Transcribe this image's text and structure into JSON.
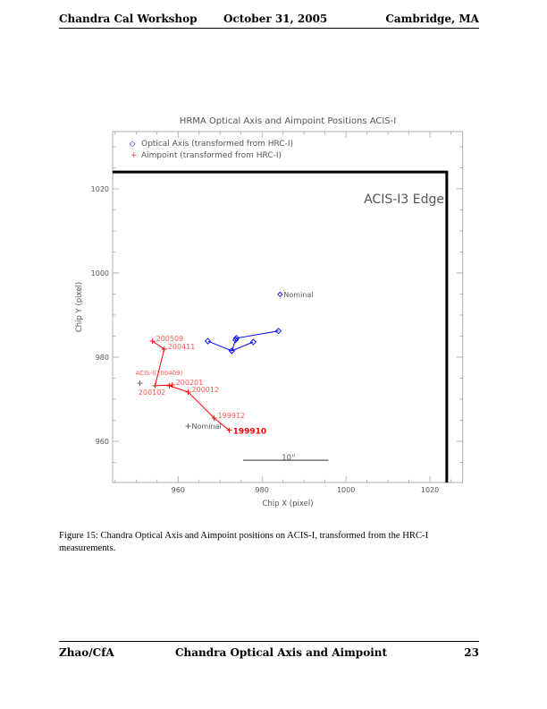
{
  "header": {
    "left": "Chandra Cal Workshop",
    "center": "October 31, 2005",
    "right": "Cambridge, MA"
  },
  "footer": {
    "left": "Zhao/CfA",
    "center": "Chandra Optical Axis and Aimpoint",
    "right": "23"
  },
  "caption": "Figure 15: Chandra Optical Axis and Aimpoint positions on ACIS-I, transformed from the HRC-I measurements.",
  "chart_data": {
    "type": "scatter",
    "title": "HRMA Optical Axis and Aimpoint Positions  ACIS-I",
    "xlabel": "Chip X (pixel)",
    "ylabel": "Chip Y (pixel)",
    "xlim": [
      944.4,
      1027.8
    ],
    "ylim": [
      950.2,
      1033.6
    ],
    "xticks": [
      960,
      980,
      1000,
      1020
    ],
    "yticks": [
      960,
      980,
      1000,
      1020
    ],
    "grid": false,
    "legend": {
      "placement": "top-left",
      "entries": [
        {
          "symbol": "◇",
          "label": "Optical Axis (transformed from HRC-I)",
          "color": "#0000ff"
        },
        {
          "symbol": "+",
          "label": "Aimpoint (transformed from HRC-I)",
          "color": "#ff0000"
        }
      ]
    },
    "edge": {
      "label": "ACIS-I3 Edge",
      "x": 1024.0,
      "y": 1024.0
    },
    "scale_bar": {
      "label": "10''",
      "x": [
        975.5,
        995.8
      ],
      "y": 955.5
    },
    "series": [
      {
        "name": "Optical Axis",
        "color": "#0000ff",
        "marker": "diamond",
        "points": [
          {
            "x": 967.1,
            "y": 983.8
          },
          {
            "x": 972.8,
            "y": 981.5
          },
          {
            "x": 977.9,
            "y": 983.6
          },
          {
            "x": 972.8,
            "y": 981.5
          },
          {
            "x": 973.7,
            "y": 984.1
          },
          {
            "x": 973.9,
            "y": 984.5
          },
          {
            "x": 983.9,
            "y": 986.2
          }
        ],
        "nominal": {
          "x": 984.3,
          "y": 994.9,
          "label": "Nominal"
        }
      },
      {
        "name": "Aimpoint",
        "color": "#ff0000",
        "marker": "plus",
        "points": [
          {
            "x": 972.2,
            "y": 962.6,
            "label": "199910"
          },
          {
            "x": 968.6,
            "y": 965.5,
            "label": "199912"
          },
          {
            "x": 962.4,
            "y": 971.7,
            "label": "200012"
          },
          {
            "x": 957.9,
            "y": 973.2,
            "label": "200102"
          },
          {
            "x": 958.6,
            "y": 973.4,
            "label": "200201"
          },
          {
            "x": 954.5,
            "y": 973.2,
            "label": ""
          },
          {
            "x": 956.7,
            "y": 981.9,
            "label": "200411"
          },
          {
            "x": 953.9,
            "y": 983.8,
            "label": "200509"
          }
        ],
        "extra": {
          "x": 950.9,
          "y": 973.8,
          "label": "ACIS-I(200409)"
        },
        "nominal": {
          "x": 962.4,
          "y": 963.6,
          "label": "Nominal"
        }
      }
    ]
  }
}
